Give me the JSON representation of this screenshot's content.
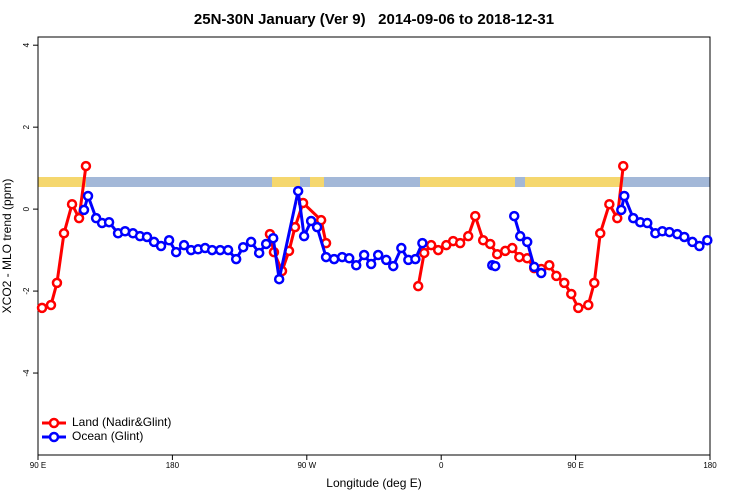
{
  "chart_data": {
    "type": "line",
    "title": "25N-30N January (Ver 9)   2014-09-06 to 2018-12-31",
    "x_label": "Longitude (deg E)",
    "y_label": "XCO2 - MLO trend (ppm)",
    "xlim": [
      90,
      540
    ],
    "xticks": [
      {
        "value": 90,
        "label": "90 E"
      },
      180,
      {
        "value": 270,
        "label": "90 W"
      },
      {
        "value": 360,
        "label": "0"
      },
      {
        "value": 450,
        "label": "90 E"
      },
      {
        "value": 540,
        "label": "180"
      }
    ],
    "ylim": [
      -6,
      4.2
    ],
    "yticks": [
      4,
      2,
      0,
      -2,
      -4
    ],
    "legend": "bottom-left",
    "series": [
      {
        "name": "Land (Nadir&Glint)",
        "color": "#ff0000",
        "x": [
          92.7,
          98.7,
          102.7,
          107.4,
          112.8,
          117.5,
          122.1,
          null,
          245.3,
          248,
          253.4,
          258.1,
          262.1,
          267.5,
          279.6,
          282.9,
          null,
          344.6,
          348.6,
          353.3,
          358,
          363.4,
          368,
          372.7,
          378.1,
          382.8,
          388.1,
          392.8,
          397.5,
          402.9,
          407.6,
          412.3,
          417.6,
          422.3,
          427,
          432.4,
          437.1,
          442.4,
          447.1,
          451.8,
          458.5,
          462.5,
          466.5,
          472.6,
          477.9,
          481.9
        ],
        "values": [
          -2.41,
          -2.34,
          -1.8,
          -0.59,
          0.12,
          -0.22,
          1.05,
          null,
          -0.61,
          -1.05,
          -1.51,
          -1.02,
          -0.44,
          0.15,
          -0.27,
          -0.83,
          null,
          -1.88,
          -1.07,
          -0.88,
          -1.0,
          -0.88,
          -0.78,
          -0.83,
          -0.66,
          -0.17,
          -0.76,
          -0.85,
          -1.1,
          -1.02,
          -0.95,
          -1.17,
          -1.2,
          -1.44,
          -1.46,
          -1.37,
          -1.63,
          -1.8,
          -2.07,
          -2.41,
          -2.34,
          -1.8,
          -0.59,
          0.12,
          -0.22,
          1.05
        ]
      },
      {
        "name": "Ocean (Glint)",
        "color": "#0000ff",
        "x": [
          120.8,
          123.5,
          128.9,
          132.9,
          137.6,
          143.6,
          148.3,
          153.6,
          158.3,
          163,
          167.7,
          172.4,
          177.8,
          182.5,
          187.8,
          192.5,
          197.2,
          201.9,
          206.6,
          212,
          217.3,
          222.7,
          227.4,
          232.7,
          238.1,
          242.8,
          247.5,
          251.5,
          264.2,
          268.2,
          272.9,
          276.9,
          282.9,
          288.3,
          293.7,
          298.4,
          303.1,
          308.4,
          313.1,
          317.8,
          323.2,
          327.9,
          333.3,
          338,
          342.7,
          347.4,
          null,
          394.2,
          396.2,
          null,
          408.9,
          412.9,
          417.6,
          422.3,
          427,
          null,
          480.6,
          482.6,
          488.6,
          493.3,
          498,
          503.4,
          508.1,
          512.8,
          518.1,
          522.8,
          528.2,
          532.9,
          538.2
        ],
        "values": [
          -0.02,
          0.32,
          -0.22,
          -0.34,
          -0.32,
          -0.59,
          -0.54,
          -0.59,
          -0.66,
          -0.68,
          -0.8,
          -0.9,
          -0.76,
          -1.05,
          -0.88,
          -1.0,
          -0.98,
          -0.95,
          -1.0,
          -1.0,
          -1.0,
          -1.22,
          -0.93,
          -0.8,
          -1.07,
          -0.85,
          -0.71,
          -1.71,
          0.44,
          -0.66,
          -0.29,
          -0.44,
          -1.17,
          -1.22,
          -1.17,
          -1.2,
          -1.37,
          -1.12,
          -1.34,
          -1.12,
          -1.24,
          -1.39,
          -0.95,
          -1.24,
          -1.22,
          -0.83,
          null,
          -1.37,
          -1.39,
          null,
          -0.17,
          -0.66,
          -0.8,
          -1.41,
          -1.56,
          null,
          -0.02,
          0.32,
          -0.22,
          -0.32,
          -0.34,
          -0.59,
          -0.54,
          -0.56,
          -0.61,
          -0.68,
          -0.8,
          -0.9,
          -0.76
        ]
      }
    ]
  }
}
